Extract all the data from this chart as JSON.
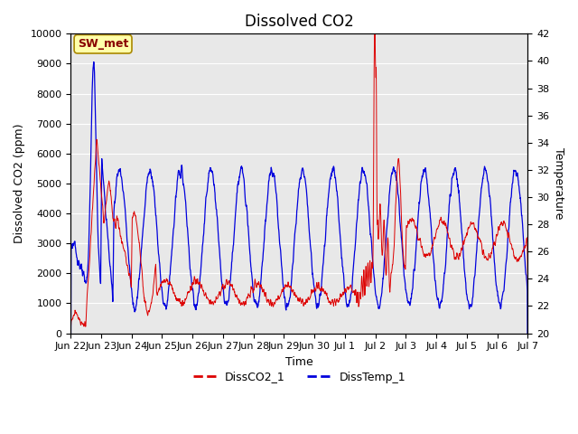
{
  "title": "Dissolved CO2",
  "xlabel": "Time",
  "ylabel_left": "Dissolved CO2 (ppm)",
  "ylabel_right": "Temperature",
  "ylim_left": [
    0,
    10000
  ],
  "ylim_right": [
    20,
    42
  ],
  "annotation": "SW_met",
  "annotation_bg": "#ffffaa",
  "annotation_border": "#aa8800",
  "annotation_text_color": "#880000",
  "plot_bg": "#e8e8e8",
  "line_co2_color": "#dd0000",
  "line_temp_color": "#0000dd",
  "legend_co2": "DissCO2_1",
  "legend_temp": "DissTemp_1",
  "title_fontsize": 12,
  "label_fontsize": 9,
  "tick_fontsize": 8,
  "tick_labels": [
    "Jun 22",
    "Jun 23",
    "Jun 24",
    "Jun 25",
    "Jun 26",
    "Jun 27",
    "Jun 28",
    "Jun 29",
    "Jun 30",
    "Jul 1",
    "Jul 2",
    "Jul 3",
    "Jul 4",
    "Jul 5",
    "Jul 6",
    "Jul 7"
  ],
  "yticks_left": [
    0,
    1000,
    2000,
    3000,
    4000,
    5000,
    6000,
    7000,
    8000,
    9000,
    10000
  ],
  "yticks_right": [
    20,
    22,
    24,
    26,
    28,
    30,
    32,
    34,
    36,
    38,
    40,
    42
  ]
}
